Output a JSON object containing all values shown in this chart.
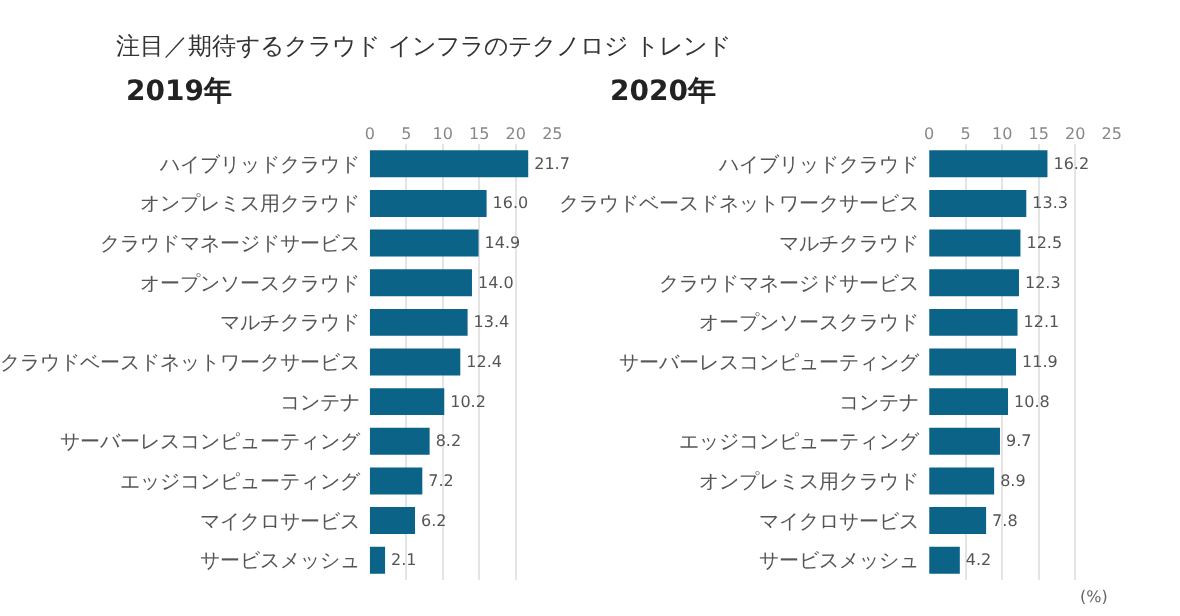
{
  "chart_data": [
    {
      "type": "bar",
      "orientation": "horizontal",
      "title": "注目／期待するクラウド インフラのテクノロジ トレンド",
      "subtitle": "2019年",
      "categories": [
        "ハイブリッドクラウド",
        "オンプレミス用クラウド",
        "クラウドマネージドサービス",
        "オープンソースクラウド",
        "マルチクラウド",
        "クラウドベースドネットワークサービス",
        "コンテナ",
        "サーバーレスコンピューティング",
        "エッジコンピューティング",
        "マイクロサービス",
        "サービスメッシュ"
      ],
      "values": [
        21.7,
        16.0,
        14.9,
        14.0,
        13.4,
        12.4,
        10.2,
        8.2,
        7.2,
        6.2,
        2.1
      ],
      "color": "#0b6388",
      "value_labels": [
        "21.7",
        "16.0",
        "14.9",
        "14.0",
        "13.4",
        "12.4",
        "10.2",
        "8.2",
        "7.2",
        "6.2",
        "2.1"
      ],
      "xlim": [
        0,
        25
      ],
      "xticks": [
        0,
        5,
        10,
        15,
        20,
        25
      ],
      "grid": "x"
    },
    {
      "type": "bar",
      "orientation": "horizontal",
      "subtitle": "2020年",
      "xlabel": "(%)",
      "categories": [
        "ハイブリッドクラウド",
        "クラウドベースドネットワークサービス",
        "マルチクラウド",
        "クラウドマネージドサービス",
        "オープンソースクラウド",
        "サーバーレスコンピューティング",
        "コンテナ",
        "エッジコンピューティング",
        "オンプレミス用クラウド",
        "マイクロサービス",
        "サービスメッシュ"
      ],
      "values": [
        16.2,
        13.3,
        12.5,
        12.3,
        12.1,
        11.9,
        10.8,
        9.7,
        8.9,
        7.8,
        4.2
      ],
      "color": "#0b6388",
      "value_labels": [
        "16.2",
        "13.3",
        "12.5",
        "12.3",
        "12.1",
        "11.9",
        "10.8",
        "9.7",
        "8.9",
        "7.8",
        "4.2"
      ],
      "xlim": [
        0,
        25
      ],
      "xticks": [
        0,
        5,
        10,
        15,
        20,
        25
      ],
      "grid": "x"
    }
  ]
}
